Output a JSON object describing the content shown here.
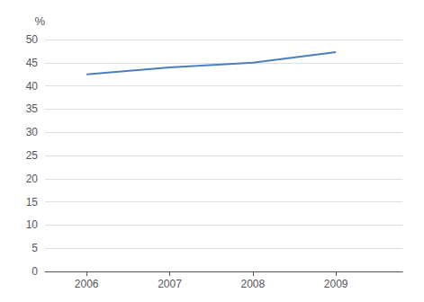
{
  "chart_data": {
    "type": "line",
    "ylabel": "%",
    "x": [
      2006,
      2007,
      2008,
      2009
    ],
    "values": [
      42.5,
      44.0,
      45.0,
      47.3
    ],
    "color": "#4d7ebf",
    "xlim": [
      2005.5,
      2009.8
    ],
    "xticks": [
      2006,
      2007,
      2008,
      2009
    ],
    "ylim": [
      0,
      50
    ],
    "yticks": [
      0,
      5,
      10,
      15,
      20,
      25,
      30,
      35,
      40,
      45,
      50
    ],
    "grid": true
  }
}
